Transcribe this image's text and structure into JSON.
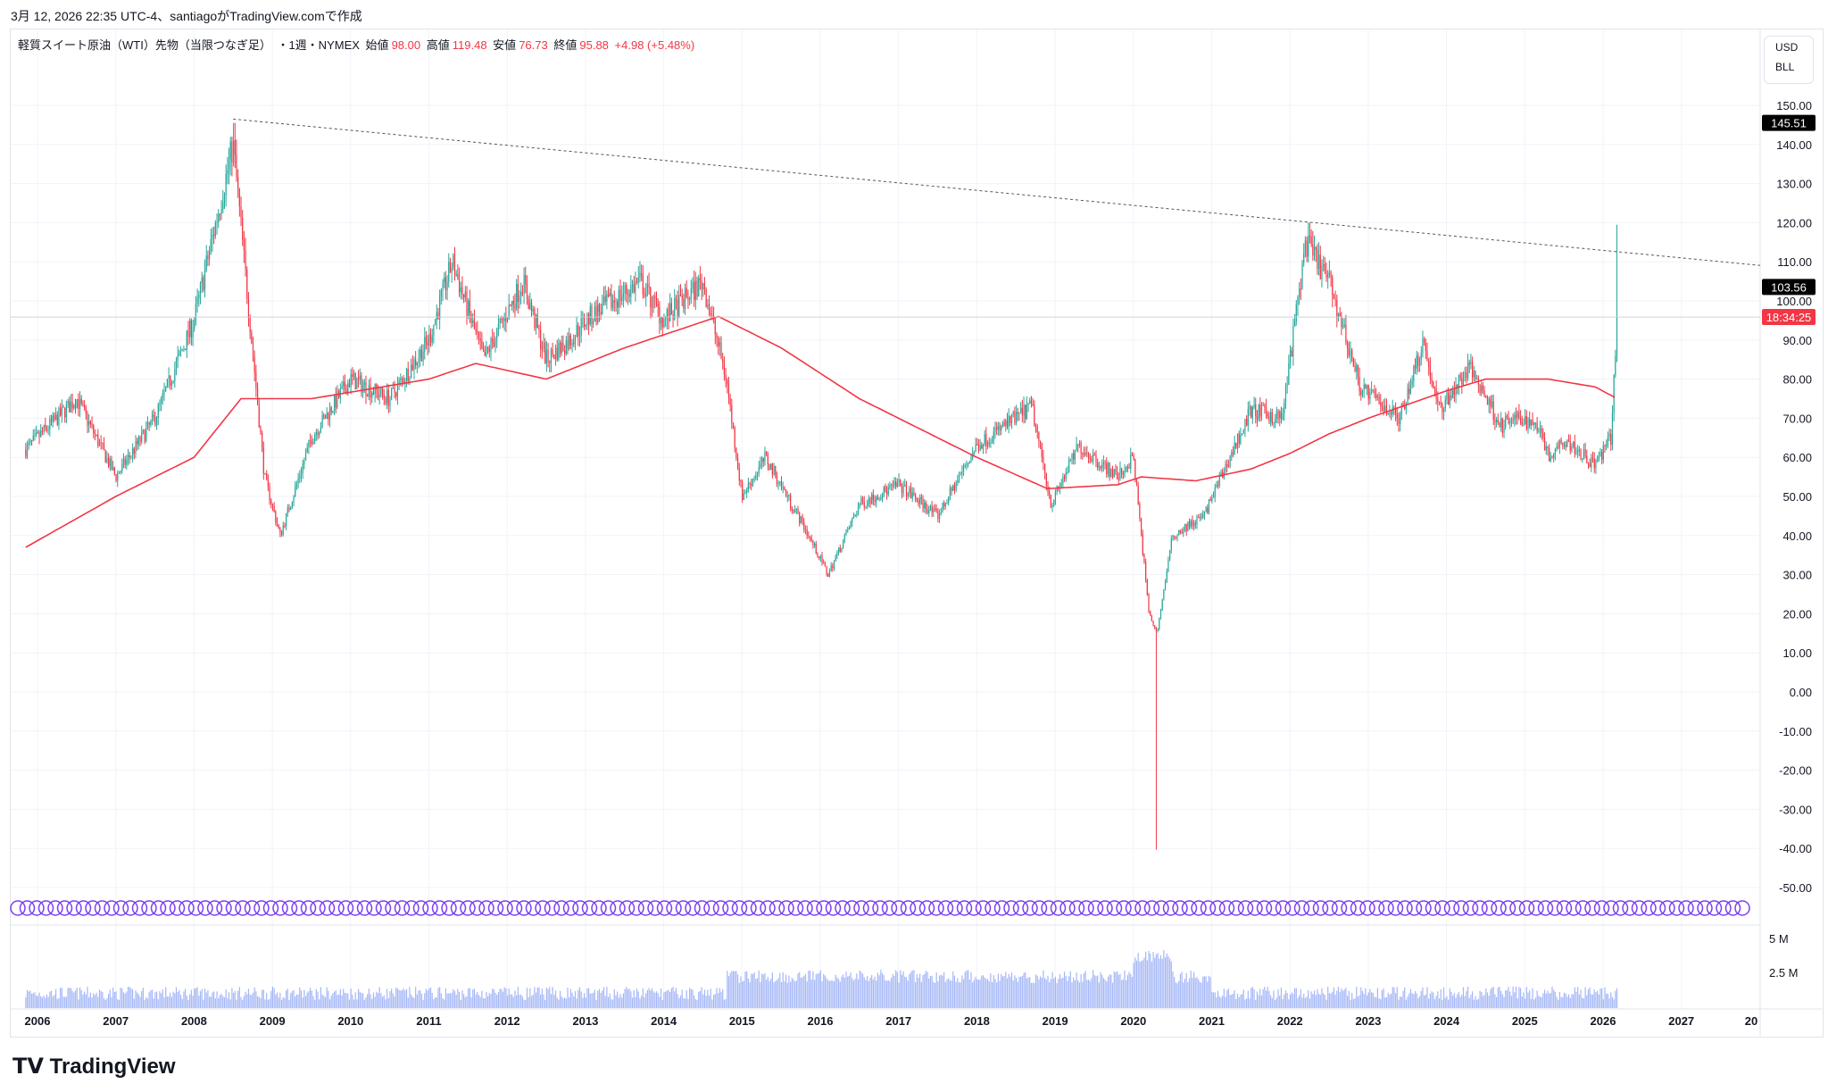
{
  "caption": "3月 12, 2026 22:35 UTC-4、santiagoがTradingView.comで作成",
  "legend": {
    "symbol": "軽質スイート原油（WTI）先物（当限つなぎ足）",
    "interval": "・1週・NYMEX",
    "open_label": "始値",
    "open": "98.00",
    "high_label": "高値",
    "high": "119.48",
    "low_label": "安値",
    "low": "76.73",
    "close_label": "終値",
    "close": "95.88",
    "change": "+4.98 (+5.48%)"
  },
  "currency": {
    "unit": "USD",
    "qty": "BLL"
  },
  "badges": {
    "high_marker": "145.51",
    "trend_marker": "103.56",
    "countdown": "18:34:25"
  },
  "volume_ticks": [
    "5 M",
    "2.5 M"
  ],
  "logo": "TradingView",
  "colors": {
    "up": "#26a69a",
    "down": "#f23645",
    "ma": "#f23645",
    "volume": "#5b7cf0",
    "events": "#7b3ff2"
  },
  "chart_data": {
    "type": "candlestick",
    "title": "軽質スイート原油（WTI）先物（当限つなぎ足）",
    "ylim": [
      -50,
      150
    ],
    "yticks": [
      150,
      140,
      130,
      120,
      110,
      100,
      90,
      80,
      70,
      60,
      50,
      40,
      30,
      20,
      10,
      0,
      -10,
      -20,
      -30,
      -40,
      -50
    ],
    "xticks": [
      "2006",
      "2007",
      "2008",
      "2009",
      "2010",
      "2011",
      "2012",
      "2013",
      "2014",
      "2015",
      "2016",
      "2017",
      "2018",
      "2019",
      "2020",
      "2021",
      "2022",
      "2023",
      "2024",
      "2025",
      "2026",
      "2027",
      "20"
    ],
    "price_path": [
      [
        2005.85,
        62
      ],
      [
        2006.5,
        75
      ],
      [
        2007.0,
        55
      ],
      [
        2007.5,
        70
      ],
      [
        2008.0,
        95
      ],
      [
        2008.5,
        140
      ],
      [
        2008.9,
        55
      ],
      [
        2009.1,
        40
      ],
      [
        2009.5,
        65
      ],
      [
        2010.0,
        80
      ],
      [
        2010.5,
        75
      ],
      [
        2011.0,
        90
      ],
      [
        2011.3,
        110
      ],
      [
        2011.7,
        85
      ],
      [
        2012.2,
        105
      ],
      [
        2012.5,
        85
      ],
      [
        2012.8,
        90
      ],
      [
        2013.0,
        95
      ],
      [
        2013.7,
        105
      ],
      [
        2014.0,
        95
      ],
      [
        2014.5,
        105
      ],
      [
        2014.8,
        80
      ],
      [
        2015.0,
        50
      ],
      [
        2015.3,
        60
      ],
      [
        2015.8,
        42
      ],
      [
        2016.1,
        30
      ],
      [
        2016.5,
        48
      ],
      [
        2017.0,
        53
      ],
      [
        2017.5,
        45
      ],
      [
        2018.0,
        63
      ],
      [
        2018.7,
        73
      ],
      [
        2018.95,
        48
      ],
      [
        2019.3,
        63
      ],
      [
        2019.8,
        55
      ],
      [
        2020.0,
        60
      ],
      [
        2020.2,
        20
      ],
      [
        2020.3,
        15
      ],
      [
        2020.5,
        40
      ],
      [
        2020.9,
        45
      ],
      [
        2021.5,
        72
      ],
      [
        2021.9,
        70
      ],
      [
        2022.2,
        115
      ],
      [
        2022.5,
        105
      ],
      [
        2022.9,
        78
      ],
      [
        2023.4,
        70
      ],
      [
        2023.7,
        90
      ],
      [
        2023.9,
        72
      ],
      [
        2024.3,
        83
      ],
      [
        2024.7,
        68
      ],
      [
        2024.9,
        70
      ],
      [
        2025.2,
        68
      ],
      [
        2025.3,
        60
      ],
      [
        2025.5,
        65
      ],
      [
        2025.9,
        58
      ],
      [
        2026.1,
        65
      ],
      [
        2026.18,
        96
      ]
    ],
    "moving_average": [
      [
        2005.85,
        37
      ],
      [
        2007.0,
        50
      ],
      [
        2008.0,
        60
      ],
      [
        2008.6,
        75
      ],
      [
        2009.5,
        75
      ],
      [
        2011.0,
        80
      ],
      [
        2011.6,
        84
      ],
      [
        2012.5,
        80
      ],
      [
        2013.5,
        88
      ],
      [
        2014.7,
        96
      ],
      [
        2015.5,
        88
      ],
      [
        2016.5,
        75
      ],
      [
        2018.0,
        60
      ],
      [
        2018.9,
        52
      ],
      [
        2019.8,
        53
      ],
      [
        2020.1,
        55
      ],
      [
        2020.8,
        54
      ],
      [
        2021.5,
        57
      ],
      [
        2022.0,
        61
      ],
      [
        2022.5,
        66
      ],
      [
        2023.0,
        70
      ],
      [
        2024.0,
        77
      ],
      [
        2024.5,
        80
      ],
      [
        2025.3,
        80
      ],
      [
        2025.9,
        78
      ],
      [
        2026.18,
        75
      ]
    ],
    "trendline": [
      [
        2008.5,
        146.5
      ],
      [
        2027.0,
        111
      ]
    ],
    "extremes": {
      "max_high": 145.51,
      "min_low": -40.32,
      "last_spike_high": 119.48
    },
    "last_price": 95.88
  }
}
